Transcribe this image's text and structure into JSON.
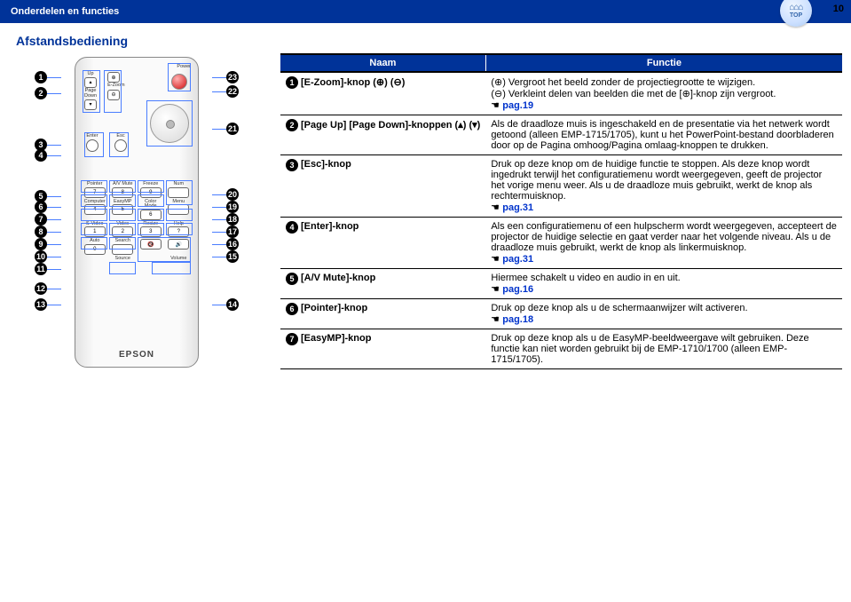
{
  "header": {
    "title": "Onderdelen en functies",
    "page_number": "10",
    "top_icon_label": "TOP"
  },
  "subtitle": "Afstandsbediening",
  "remote": {
    "brand": "EPSON",
    "labels": {
      "up": "Up",
      "page": "Page",
      "down": "Down",
      "ezoom": "E-Zoom",
      "power": "Power",
      "enter": "Enter",
      "esc": "Esc",
      "pointer": "Pointer",
      "avmute": "A/V Mute",
      "freeze": "Freeze",
      "num": "Num",
      "computer": "Computer",
      "easymp": "EasyMP",
      "colormode": "Color Mode",
      "menu": "Menu",
      "svideo": "S-Video",
      "video": "Video",
      "resize": "Resize",
      "help": "Help",
      "auto": "Auto",
      "search": "Search",
      "source": "Source",
      "volume": "Volume"
    },
    "keys": {
      "n1": "1",
      "n2": "2",
      "n3": "3",
      "n4": "4",
      "n5": "5",
      "n6": "6",
      "n7": "7",
      "n8": "8",
      "n9": "9",
      "n0": "0",
      "q": "?"
    }
  },
  "callouts_left": [
    "1",
    "2",
    "3",
    "4",
    "5",
    "6",
    "7",
    "8",
    "9",
    "10",
    "11",
    "12",
    "13"
  ],
  "callouts_right": [
    "23",
    "22",
    "21",
    "20",
    "19",
    "18",
    "17",
    "16",
    "15",
    "14"
  ],
  "table": {
    "head_name": "Naam",
    "head_func": "Functie",
    "rows": [
      {
        "num": "1",
        "name": "[E-Zoom]-knop (⊕) (⊖)",
        "func": "(⊕) Vergroot het beeld zonder de projectiegrootte te wijzigen.\n(⊖) Verkleint delen van beelden die met de [⊕]-knop zijn vergroot.",
        "ref": "pag.19"
      },
      {
        "num": "2",
        "name": "[Page Up] [Page Down]-knoppen (▴) (▾)",
        "func": "Als de draadloze muis is ingeschakeld en de presentatie via het netwerk wordt getoond (alleen EMP-1715/1705), kunt u het PowerPoint-bestand doorbladeren door op de Pagina omhoog/Pagina omlaag-knoppen te drukken."
      },
      {
        "num": "3",
        "name": "[Esc]-knop",
        "func": "Druk op deze knop om de huidige functie te stoppen. Als deze knop wordt ingedrukt terwijl het configuratiemenu wordt weergegeven, geeft de projector het vorige menu weer. Als u de draadloze muis gebruikt, werkt de knop als rechtermuisknop.",
        "ref": "pag.31"
      },
      {
        "num": "4",
        "name": "[Enter]-knop",
        "func": "Als een configuratiemenu of een hulpscherm wordt weergegeven, accepteert de projector de huidige selectie en gaat verder naar het volgende niveau. Als u de draadloze muis gebruikt, werkt de knop als linkermuisknop.",
        "ref": "pag.31"
      },
      {
        "num": "5",
        "name": "[A/V Mute]-knop",
        "func": "Hiermee schakelt u video en audio in en uit.",
        "ref": "pag.16"
      },
      {
        "num": "6",
        "name": "[Pointer]-knop",
        "func": "Druk op deze knop als u de schermaanwijzer wilt activeren.",
        "ref": "pag.18"
      },
      {
        "num": "7",
        "name": "[EasyMP]-knop",
        "func": "Druk op deze knop als u de EasyMP-beeldweergave wilt gebruiken. Deze functie kan niet worden gebruikt bij de EMP-1710/1700 (alleen EMP-1715/1705)."
      }
    ]
  }
}
